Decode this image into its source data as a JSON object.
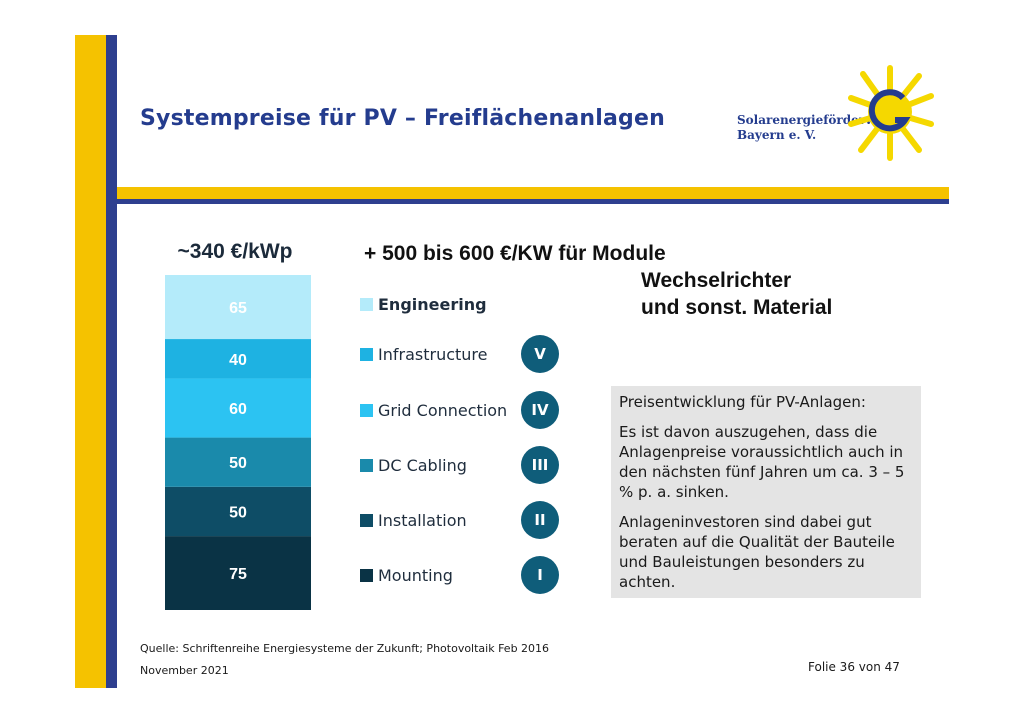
{
  "header": {
    "title": "Systempreise für PV – Freiflächenanlagen",
    "logo_line1": "Solarenergieförderverein",
    "logo_line2": "Bayern e. V."
  },
  "notes": {
    "line1": "+ 500 bis 600 €/KW für Module",
    "line2": "Wechselrichter",
    "line3": "und sonst. Material"
  },
  "chart_data": {
    "type": "bar",
    "stacked": true,
    "title": "~340 €/kWp",
    "categories": [
      ""
    ],
    "series": [
      {
        "name": "Mounting",
        "values": [
          75
        ],
        "roman": "I",
        "color": "#0a3345"
      },
      {
        "name": "Installation",
        "values": [
          50
        ],
        "roman": "II",
        "color": "#0e4d66"
      },
      {
        "name": "DC Cabling",
        "values": [
          50
        ],
        "roman": "III",
        "color": "#1a8aab"
      },
      {
        "name": "Grid Connection",
        "values": [
          60
        ],
        "roman": "IV",
        "color": "#2cc3f2"
      },
      {
        "name": "Infrastructure",
        "values": [
          40
        ],
        "roman": "V",
        "color": "#1eb2e2"
      },
      {
        "name": "Engineering",
        "values": [
          65
        ],
        "roman": "",
        "color": "#b4ebfa"
      }
    ],
    "legend": "right",
    "grid": false
  },
  "infobox": {
    "heading": "Preisentwicklung für PV-Anlagen:",
    "para1": "Es ist davon auszugehen, dass die Anlagenpreise voraussichtlich auch in den nächsten fünf Jahren um ca. 3 – 5 % p. a. sinken.",
    "para2": "Anlageninvestoren sind dabei gut beraten auf die Qualität der Bauteile und Bauleistungen besonders zu achten."
  },
  "footer": {
    "source": "Quelle: Schriftenreihe Energiesysteme der Zukunft; Photovoltaik Feb 2016",
    "date": "November 2021",
    "slide": "Folie 36 von 47"
  }
}
